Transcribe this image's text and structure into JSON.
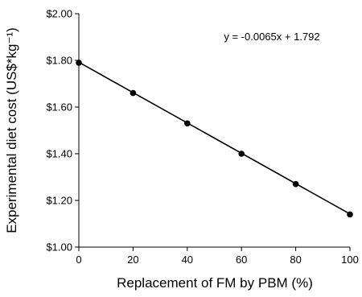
{
  "chart_data": {
    "type": "scatter",
    "title": "",
    "xlabel": "Replacement of FM by PBM (%)",
    "ylabel": "Experimental diet cost (US$*kg⁻¹)",
    "xlim": [
      0,
      100
    ],
    "ylim": [
      1.0,
      2.0
    ],
    "x_ticks": [
      0,
      20,
      40,
      60,
      80,
      100
    ],
    "x_tick_labels": [
      "0",
      "20",
      "40",
      "60",
      "80",
      "100"
    ],
    "y_ticks": [
      1.0,
      1.2,
      1.4,
      1.6,
      1.8,
      2.0
    ],
    "y_tick_labels": [
      "$1.00",
      "$1.20",
      "$1.40",
      "$1.60",
      "$1.80",
      "$2.00"
    ],
    "grid": false,
    "series": [
      {
        "x": [
          0,
          20,
          40,
          60,
          80,
          100
        ],
        "values": [
          1.79,
          1.66,
          1.53,
          1.4,
          1.27,
          1.14
        ],
        "marker": "circle",
        "color": "#000000"
      }
    ],
    "trendline": {
      "slope": -0.0065,
      "intercept": 1.792,
      "color": "#000000"
    },
    "annotations": [
      {
        "text": "y = -0.0065x + 1.792",
        "position": "top-right"
      }
    ]
  }
}
